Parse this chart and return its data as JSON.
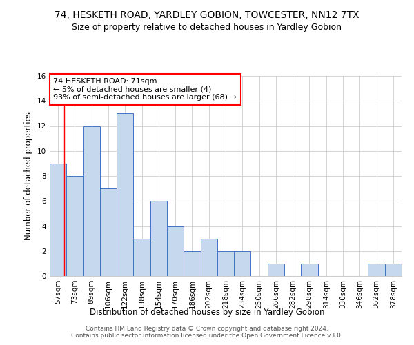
{
  "title": "74, HESKETH ROAD, YARDLEY GOBION, TOWCESTER, NN12 7TX",
  "subtitle": "Size of property relative to detached houses in Yardley Gobion",
  "xlabel": "Distribution of detached houses by size in Yardley Gobion",
  "ylabel": "Number of detached properties",
  "bar_labels": [
    "57sqm",
    "73sqm",
    "89sqm",
    "106sqm",
    "122sqm",
    "138sqm",
    "154sqm",
    "170sqm",
    "186sqm",
    "202sqm",
    "218sqm",
    "234sqm",
    "250sqm",
    "266sqm",
    "282sqm",
    "298sqm",
    "314sqm",
    "330sqm",
    "346sqm",
    "362sqm",
    "378sqm"
  ],
  "bar_values": [
    9,
    8,
    12,
    7,
    13,
    3,
    6,
    4,
    2,
    3,
    2,
    2,
    0,
    1,
    0,
    1,
    0,
    0,
    0,
    1,
    1
  ],
  "bar_color": "#c5d8ed",
  "bar_edge_color": "#4472c4",
  "annotation_line1": "74 HESKETH ROAD: 71sqm",
  "annotation_line2": "← 5% of detached houses are smaller (4)",
  "annotation_line3": "93% of semi-detached houses are larger (68) →",
  "ylim": [
    0,
    16
  ],
  "yticks": [
    0,
    2,
    4,
    6,
    8,
    10,
    12,
    14,
    16
  ],
  "footer1": "Contains HM Land Registry data © Crown copyright and database right 2024.",
  "footer2": "Contains public sector information licensed under the Open Government Licence v3.0.",
  "grid_color": "#cccccc",
  "background_color": "#ffffff",
  "title_fontsize": 10,
  "subtitle_fontsize": 9,
  "axis_label_fontsize": 8.5,
  "tick_fontsize": 7.5,
  "annot_fontsize": 8,
  "footer_fontsize": 6.5
}
